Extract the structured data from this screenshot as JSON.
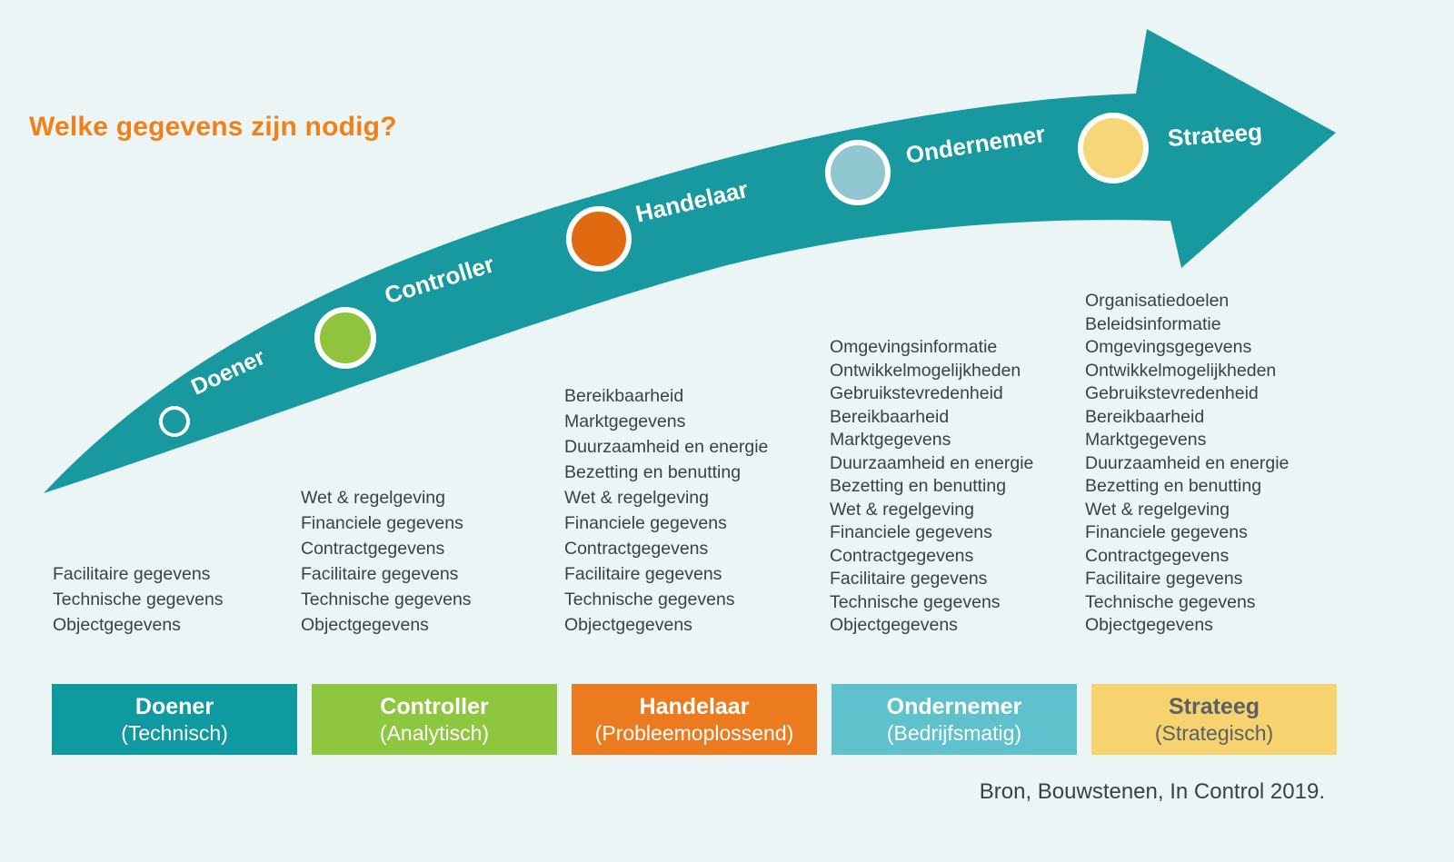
{
  "title": "Welke gegevens zijn nodig?",
  "source": "Bron, Bouwstenen, In Control 2019.",
  "colors": {
    "background": "#ebf5f6",
    "arrow": "#1899a0",
    "title": "#f08119",
    "body_text": "#3b4045",
    "strateeg_box_text": "#5a6065"
  },
  "stages": [
    {
      "label": "Doener",
      "sub": "(Technisch)",
      "circle_color": "transparent",
      "box_color": "#0f99a0",
      "items": [
        "Facilitaire gegevens",
        "Technische gegevens",
        "Objectgegevens"
      ]
    },
    {
      "label": "Controller",
      "sub": "(Analytisch)",
      "circle_color": "#8fc43c",
      "box_color": "#8ec63f",
      "items": [
        "Wet & regelgeving",
        "Financiele gegevens",
        "Contractgegevens",
        "Facilitaire gegevens",
        "Technische gegevens",
        "Objectgegevens"
      ]
    },
    {
      "label": "Handelaar",
      "sub": "(Probleemoplossend)",
      "circle_color": "#e16a10",
      "box_color": "#ec7a1f",
      "items": [
        "Bereikbaarheid",
        "Marktgegevens",
        "Duurzaamheid en energie",
        "Bezetting en benutting",
        "Wet & regelgeving",
        "Financiele gegevens",
        "Contractgegevens",
        "Facilitaire gegevens",
        "Technische gegevens",
        "Objectgegevens"
      ]
    },
    {
      "label": "Ondernemer",
      "sub": "(Bedrijfsmatig)",
      "circle_color": "#8fc6cf",
      "box_color": "#5ec1cb",
      "items": [
        "Omgevingsinformatie",
        "Ontwikkelmogelijkheden",
        "Gebruikstevredenheid",
        "Bereikbaarheid",
        "Marktgegevens",
        "Duurzaamheid en energie",
        "Bezetting en benutting",
        "Wet & regelgeving",
        "Financiele gegevens",
        "Contractgegevens",
        "Facilitaire gegevens",
        "Technische gegevens",
        "Objectgegevens"
      ]
    },
    {
      "label": "Strateeg",
      "sub": "(Strategisch)",
      "circle_color": "#f6d678",
      "box_color": "#f7d36f",
      "items": [
        "Organisatiedoelen",
        "Beleidsinformatie",
        "Omgevingsgegevens",
        "Ontwikkelmogelijkheden",
        "Gebruikstevredenheid",
        "Bereikbaarheid",
        "Marktgegevens",
        "Duurzaamheid en energie",
        "Bezetting en benutting",
        "Wet & regelgeving",
        "Financiele gegevens",
        "Contractgegevens",
        "Facilitaire gegevens",
        "Technische gegevens",
        "Objectgegevens"
      ]
    }
  ]
}
